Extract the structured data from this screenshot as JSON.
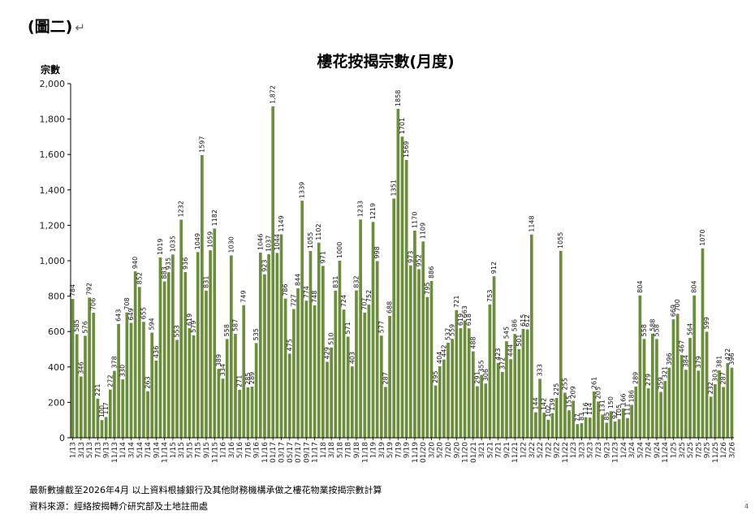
{
  "figure_label": "(圖二)",
  "return_mark": "↵",
  "footnotes": [
    "最新數據截至2026年4月    以上資料根據銀行及其他財務機構承做之樓花物業按揭宗數計算",
    "資料來源：經絡按揭轉介研究部及土地註冊處"
  ],
  "page_mark": "4",
  "colors": {
    "bar": "#6b8e3a",
    "bar_edge": "#51702a",
    "grid": "#bfbfbf",
    "axis": "#000000"
  },
  "chart_data": {
    "type": "bar",
    "title": "樓花按揭宗數(月度)",
    "ylabel": "宗數",
    "xlabel": "",
    "ylim": [
      0,
      2000
    ],
    "yticks": [
      0,
      200,
      400,
      600,
      800,
      1000,
      1200,
      1400,
      1600,
      1800,
      2000
    ],
    "ytick_labels": [
      "0",
      "200",
      "400",
      "600",
      "800",
      "1,000",
      "1,200",
      "1,400",
      "1,600",
      "1,800",
      "2,000"
    ],
    "grid": false,
    "legend": "none",
    "first_category": "1/13",
    "x_tick_labels": [
      "1/13",
      "3/13",
      "5/13",
      "7/13",
      "9/13",
      "11/13",
      "1/14",
      "3/14",
      "5/14",
      "7/14",
      "9/14",
      "11/14",
      "1/15",
      "3/15",
      "5/15",
      "7/15",
      "9/15",
      "11/15",
      "1/16",
      "3/16",
      "5/16",
      "7/16",
      "9/16",
      "11/16",
      "01/17",
      "03/17",
      "05/17",
      "07/17",
      "09/17",
      "11/17",
      "1/18",
      "3/18",
      "5/18",
      "7/18",
      "9/18",
      "11/18",
      "1/19",
      "3/19",
      "5/19",
      "7/19",
      "9/19",
      "11/19",
      "01/20",
      "3/20",
      "5/20",
      "7/20",
      "9/20",
      "11/20",
      "01/21",
      "3/21",
      "5/21",
      "7/21",
      "9/21",
      "11/21",
      "1/22",
      "3/22",
      "5/22",
      "7/22",
      "9/22",
      "11/22",
      "1/23",
      "3/23",
      "5/23",
      "7/23",
      "9/23",
      "11/23",
      "1/24",
      "3/24",
      "5/24",
      "7/24",
      "9/24",
      "11/24",
      "1/25",
      "3/25",
      "5/25",
      "7/25",
      "9/25",
      "11/25",
      "1/26",
      "3/26"
    ],
    "values": [
      784,
      585,
      346,
      576,
      792,
      706,
      221,
      100,
      117,
      272,
      378,
      643,
      330,
      708,
      649,
      940,
      852,
      655,
      263,
      594,
      436,
      1019,
      883,
      935,
      1035,
      553,
      1232,
      936,
      619,
      579,
      1049,
      1597,
      831,
      1059,
      1182,
      389,
      334,
      558,
      1030,
      587,
      271,
      749,
      285,
      289,
      535,
      1046,
      923,
      1037,
      1872,
      1044,
      1149,
      786,
      475,
      727,
      844,
      1339,
      774,
      1055,
      748,
      1102,
      971,
      429,
      510,
      831,
      1000,
      724,
      571,
      403,
      832,
      1233,
      707,
      752,
      1219,
      998,
      577,
      287,
      688,
      1351,
      1858,
      1701,
      1569,
      973,
      1170,
      952,
      1109,
      795,
      886,
      295,
      404,
      442,
      537,
      559,
      721,
      619,
      663,
      618,
      488,
      291,
      355,
      306,
      753,
      912,
      423,
      372,
      545,
      444,
      586,
      501,
      615,
      612,
      1148,
      144,
      333,
      142,
      102,
      139,
      225,
      1055,
      255,
      155,
      209,
      77,
      83,
      116,
      114,
      261,
      205,
      131,
      85,
      150,
      92,
      105,
      166,
      111,
      186,
      289,
      804,
      558,
      279,
      588,
      558,
      259,
      321,
      396,
      669,
      700,
      467,
      384,
      564,
      804,
      379,
      1070,
      599,
      232,
      303,
      381,
      287,
      422,
      396
    ]
  }
}
